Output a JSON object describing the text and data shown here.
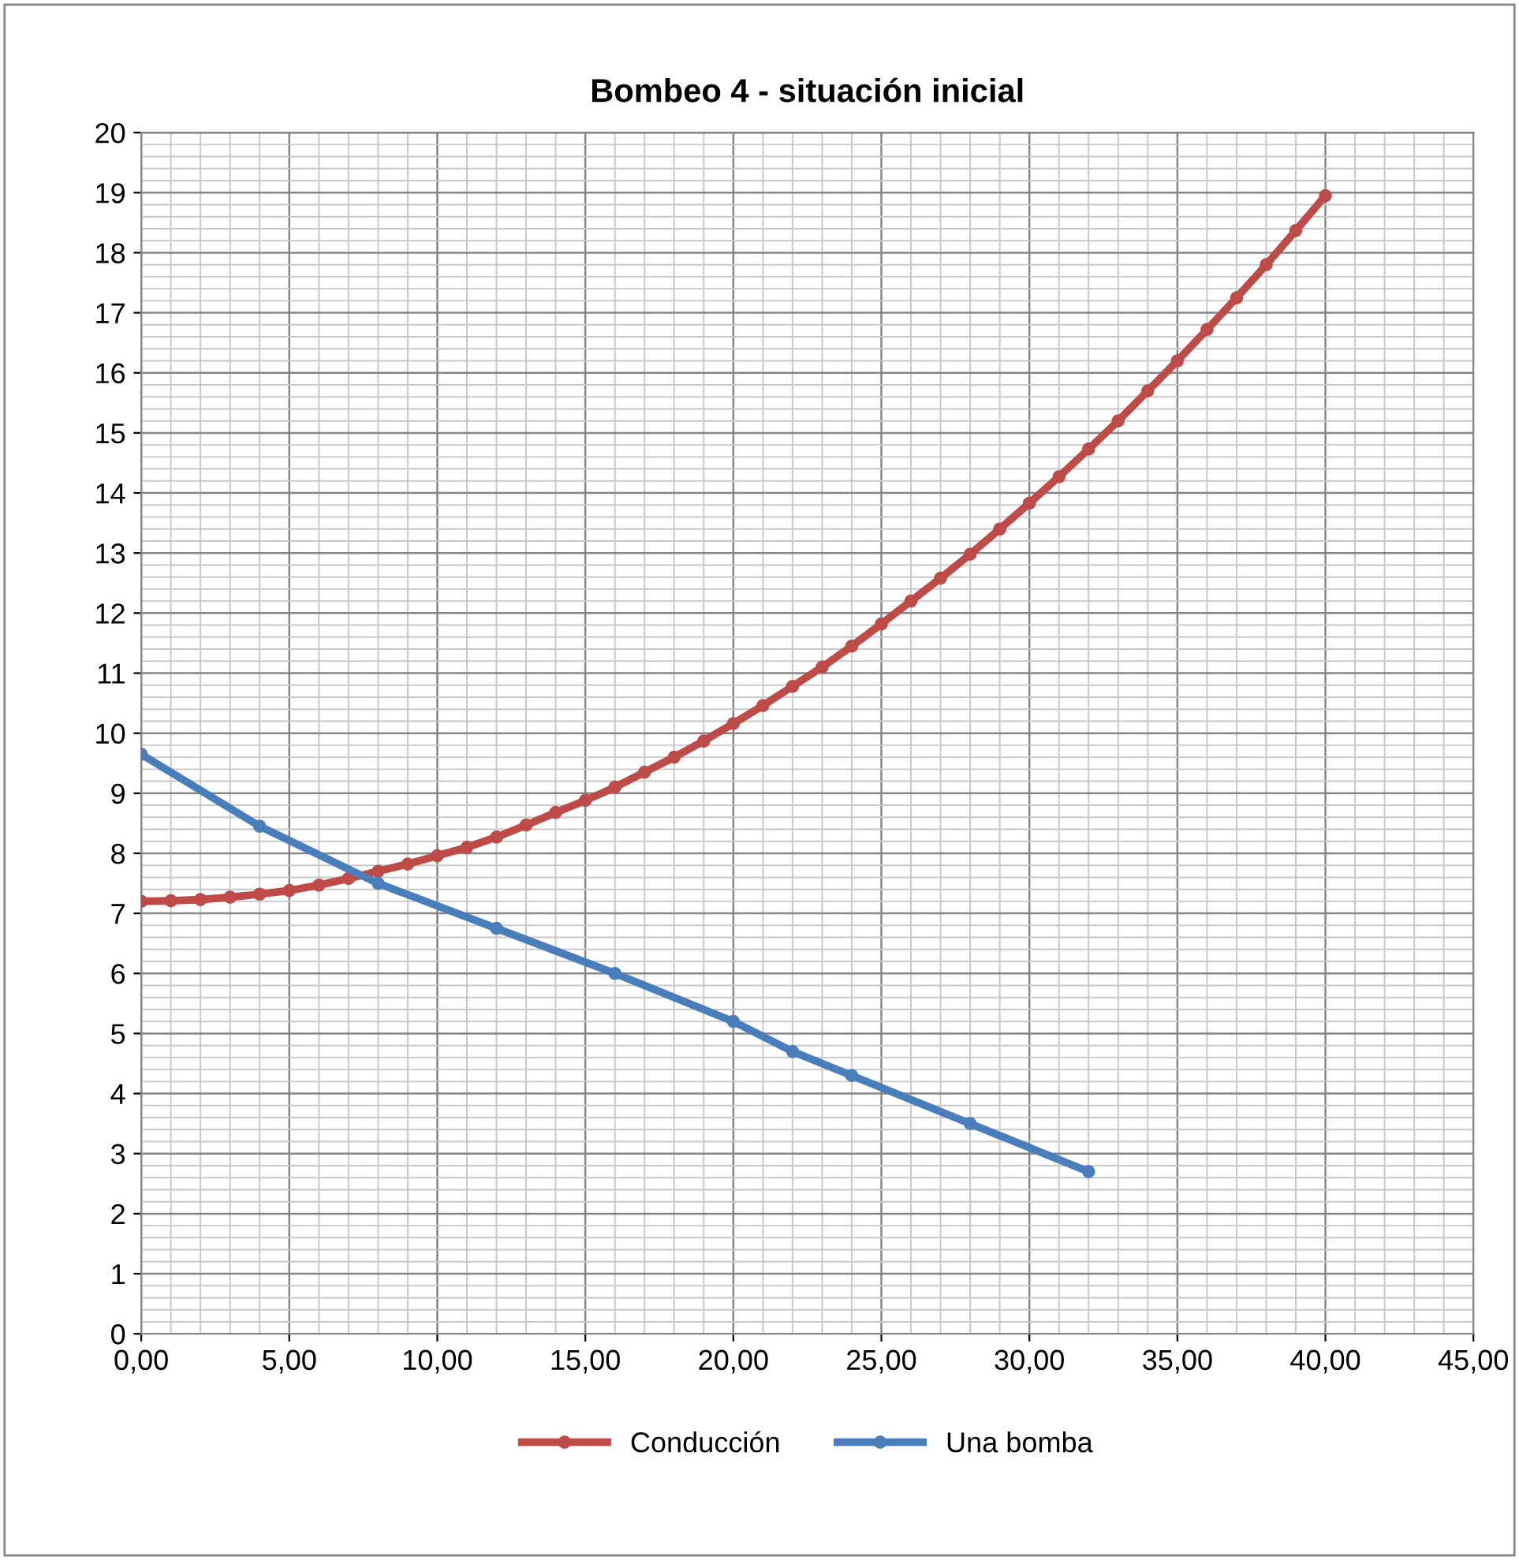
{
  "chart_data": {
    "type": "line",
    "title": "Bombeo 4 - situación inicial",
    "xlim": [
      0,
      45
    ],
    "xticks": [
      {
        "value": 0,
        "label": "0,00"
      },
      {
        "value": 5,
        "label": "5,00"
      },
      {
        "value": 10,
        "label": "10,00"
      },
      {
        "value": 15,
        "label": "15,00"
      },
      {
        "value": 20,
        "label": "20,00"
      },
      {
        "value": 25,
        "label": "25,00"
      },
      {
        "value": 30,
        "label": "30,00"
      },
      {
        "value": 35,
        "label": "35,00"
      },
      {
        "value": 40,
        "label": "40,00"
      },
      {
        "value": 45,
        "label": "45,00"
      }
    ],
    "ylim": [
      0,
      20
    ],
    "yticks": [
      0,
      1,
      2,
      3,
      4,
      5,
      6,
      7,
      8,
      9,
      10,
      11,
      12,
      13,
      14,
      15,
      16,
      17,
      18,
      19,
      20
    ],
    "grid": true,
    "legend": "bottom",
    "marker": "circle",
    "line_style": "solid",
    "series": [
      {
        "name": "Conducción",
        "color": "#be4b48",
        "x": [
          0,
          1,
          2,
          3,
          4,
          5,
          6,
          7,
          8,
          9,
          10,
          11,
          12,
          13,
          14,
          15,
          16,
          17,
          18,
          19,
          20,
          21,
          22,
          23,
          24,
          25,
          26,
          27,
          28,
          29,
          30,
          31,
          32,
          33,
          34,
          35,
          36,
          37,
          38,
          39,
          40
        ],
        "values": [
          7.2,
          7.21,
          7.23,
          7.27,
          7.32,
          7.38,
          7.47,
          7.58,
          7.7,
          7.82,
          7.96,
          8.1,
          8.27,
          8.47,
          8.68,
          8.88,
          9.1,
          9.35,
          9.6,
          9.87,
          10.16,
          10.46,
          10.78,
          11.1,
          11.45,
          11.82,
          12.2,
          12.58,
          12.98,
          13.4,
          13.83,
          14.27,
          14.73,
          15.2,
          15.7,
          16.2,
          16.72,
          17.25,
          17.8,
          18.37,
          18.95
        ]
      },
      {
        "name": "Una bomba",
        "color": "#4a7ebb",
        "x": [
          0,
          4,
          8,
          12,
          16,
          20,
          22,
          24,
          28,
          32
        ],
        "values": [
          9.65,
          8.45,
          7.5,
          6.75,
          6.0,
          5.2,
          4.7,
          4.3,
          3.5,
          2.7
        ]
      }
    ]
  }
}
